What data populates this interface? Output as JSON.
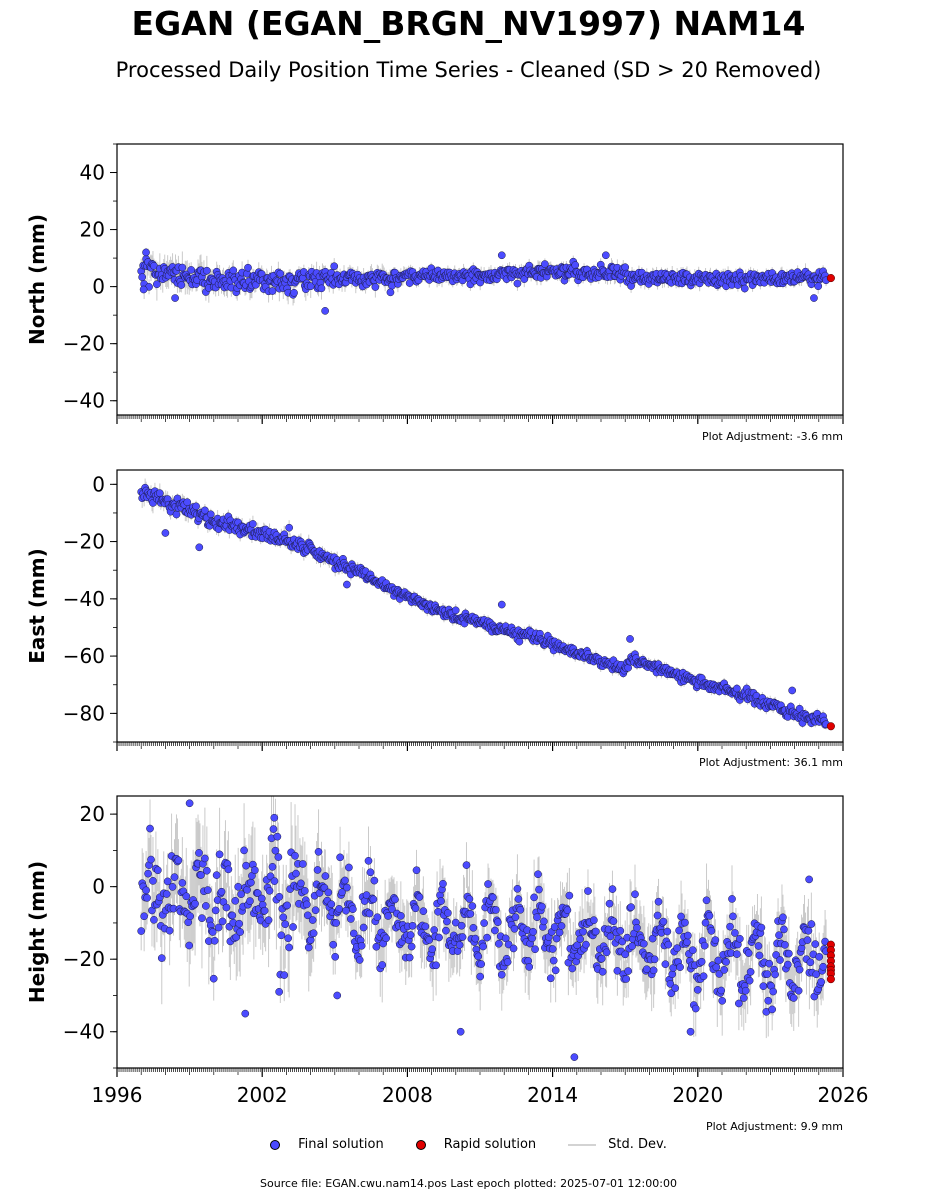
{
  "title": "EGAN (EGAN_BRGN_NV1997) NAM14",
  "subtitle": "Processed Daily Position Time Series - Cleaned (SD > 20 Removed)",
  "legend": {
    "final": "Final solution",
    "rapid": "Rapid solution",
    "stddev": "Std. Dev."
  },
  "source_note": "Source file: EGAN.cwu.nam14.pos  Last epoch plotted: 2025-07-01 12:00:00",
  "colors": {
    "final": "#4b4bff",
    "rapid": "#e00000",
    "stddev": "#bdbdbd"
  },
  "chart_data": [
    {
      "type": "scatter",
      "panel": "north",
      "ylabel": "North (mm)",
      "ylim": [
        -45,
        50
      ],
      "yticks": [
        40,
        20,
        0,
        -20,
        -40
      ],
      "xlim": [
        1996,
        2026
      ],
      "xticks": [
        1996,
        2002,
        2008,
        2014,
        2020,
        2026
      ],
      "adjustment_note": "Plot Adjustment: -3.6 mm",
      "series": [
        {
          "name": "Final solution",
          "x": [
            1997.0,
            1998.0,
            1999.0,
            2000.0,
            2001.0,
            2002.0,
            2003.0,
            2004.0,
            2005.0,
            2006.0,
            2007.0,
            2008.0,
            2009.0,
            2010.0,
            2011.0,
            2012.0,
            2013.0,
            2014.0,
            2015.0,
            2016.0,
            2017.0,
            2017.2,
            2018.0,
            2019.0,
            2020.0,
            2021.0,
            2022.0,
            2023.0,
            2024.0,
            2025.3
          ],
          "y": [
            5,
            5,
            4,
            3,
            2,
            2,
            2,
            2,
            3,
            3,
            3,
            3.5,
            4,
            4,
            4,
            4.5,
            5,
            5,
            5,
            5,
            5,
            3,
            3,
            3,
            2.5,
            2.5,
            2.5,
            3,
            3,
            3
          ],
          "spread": [
            4,
            4,
            4,
            3.5,
            3,
            3,
            3,
            3,
            2.5,
            2.5,
            2.5,
            2,
            2,
            2,
            2,
            2,
            2,
            2,
            2,
            2,
            2,
            2,
            2,
            2,
            2,
            2,
            2,
            2,
            2,
            2
          ]
        },
        {
          "name": "Rapid solution",
          "x": [
            2025.5
          ],
          "y": [
            3
          ]
        }
      ],
      "outliers": {
        "x": [
          1997.2,
          1998.4,
          2004.6,
          2011.9,
          2016.2,
          2024.8,
          1997.1,
          2007.3
        ],
        "y": [
          12,
          -4,
          -8.5,
          11,
          11,
          -4,
          -1,
          -2
        ]
      }
    },
    {
      "type": "scatter",
      "panel": "east",
      "ylabel": "East (mm)",
      "ylim": [
        -90,
        5
      ],
      "yticks": [
        0,
        -20,
        -40,
        -60,
        -80
      ],
      "xlim": [
        1996,
        2026
      ],
      "xticks": [
        1996,
        2002,
        2008,
        2014,
        2020,
        2026
      ],
      "adjustment_note": "Plot Adjustment: 36.1 mm",
      "series": [
        {
          "name": "Final solution",
          "x": [
            1997.0,
            1998.0,
            1999.0,
            2000.0,
            2001.0,
            2002.0,
            2003.0,
            2004.0,
            2005.0,
            2006.0,
            2007.0,
            2008.0,
            2009.0,
            2010.0,
            2011.0,
            2012.0,
            2013.0,
            2014.0,
            2015.0,
            2016.0,
            2017.0,
            2017.2,
            2018.0,
            2019.0,
            2020.0,
            2021.0,
            2022.0,
            2023.0,
            2024.0,
            2025.3
          ],
          "y": [
            -2,
            -6,
            -9,
            -13,
            -15,
            -17,
            -20,
            -23,
            -27,
            -31,
            -35,
            -39,
            -43,
            -46,
            -48,
            -51,
            -53,
            -56,
            -59,
            -62,
            -65,
            -61,
            -63,
            -66,
            -69,
            -71,
            -74,
            -77,
            -80,
            -83
          ],
          "spread": [
            2.5,
            2.5,
            2.5,
            2,
            2,
            2,
            2,
            2,
            2,
            1.5,
            1.5,
            1.5,
            1.5,
            1.5,
            1.5,
            1.5,
            1.5,
            1.5,
            1.5,
            1.5,
            1.5,
            1.5,
            1.5,
            1.5,
            1.5,
            1.5,
            1.5,
            1.5,
            1.5,
            1.5
          ]
        },
        {
          "name": "Rapid solution",
          "x": [
            2025.5
          ],
          "y": [
            -84.5
          ]
        }
      ],
      "outliers": {
        "x": [
          1999.4,
          2011.9,
          2017.2,
          2023.9,
          1998.0,
          2005.5
        ],
        "y": [
          -22,
          -42,
          -54,
          -72,
          -17,
          -35
        ]
      }
    },
    {
      "type": "scatter",
      "panel": "height",
      "ylabel": "Height (mm)",
      "ylim": [
        -50,
        25
      ],
      "yticks": [
        20,
        0,
        -20,
        -40
      ],
      "xlim": [
        1996,
        2026
      ],
      "xticks": [
        1996,
        2002,
        2008,
        2014,
        2020,
        2026
      ],
      "xticklabels": [
        "1996",
        "2002",
        "2008",
        "2014",
        "2020",
        "2026"
      ],
      "adjustment_note": "Plot Adjustment: 9.9 mm",
      "series": [
        {
          "name": "Final solution",
          "x": [
            1997.0,
            1998.0,
            1999.0,
            2000.0,
            2001.0,
            2002.0,
            2003.0,
            2004.0,
            2005.0,
            2006.0,
            2007.0,
            2008.0,
            2009.0,
            2010.0,
            2011.0,
            2012.0,
            2013.0,
            2014.0,
            2015.0,
            2016.0,
            2017.0,
            2017.2,
            2018.0,
            2019.0,
            2020.0,
            2021.0,
            2022.0,
            2023.0,
            2024.0,
            2025.3
          ],
          "y": [
            -2,
            -4,
            -3,
            -4,
            -3,
            -2,
            -2,
            -3,
            -6,
            -8,
            -9,
            -10,
            -11,
            -11,
            -12,
            -12,
            -12,
            -12,
            -13,
            -14,
            -15,
            -15,
            -16,
            -17,
            -19,
            -19,
            -20,
            -21,
            -21,
            -20
          ],
          "spread": [
            8,
            9,
            10,
            9,
            9,
            10,
            10,
            9,
            8,
            7,
            7,
            7,
            7,
            7,
            7,
            7,
            7,
            7,
            7,
            7,
            7,
            7,
            7,
            7,
            7,
            7,
            7,
            7,
            7,
            7
          ],
          "amplitude": 7
        },
        {
          "name": "Rapid solution",
          "x": [
            2025.5,
            2025.5,
            2025.5,
            2025.5,
            2025.5,
            2025.5,
            2025.5,
            2025.5
          ],
          "y": [
            -16,
            -17.5,
            -19,
            -20.5,
            -22,
            -23,
            -24,
            -25.5
          ]
        }
      ],
      "outliers": {
        "x": [
          1999.0,
          2002.5,
          2014.9,
          2010.2,
          2001.3,
          2024.6,
          2019.7,
          2002.7,
          2005.1
        ],
        "y": [
          23,
          19,
          -47,
          -40,
          -35,
          2,
          -40,
          -29,
          -30
        ]
      }
    }
  ]
}
